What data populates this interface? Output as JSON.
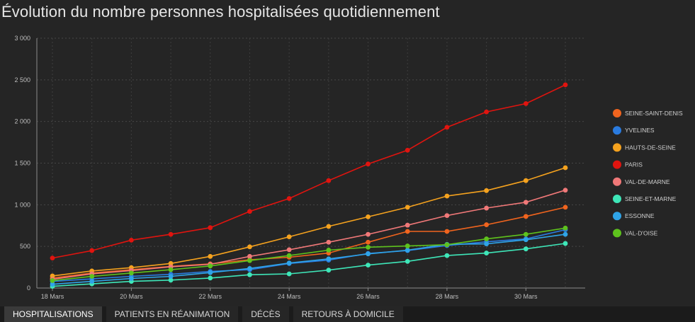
{
  "title": "Évolution du nombre personnes hospitalisées quotidiennement",
  "tabs": [
    {
      "label": "HOSPITALISATIONS",
      "active": true
    },
    {
      "label": "PATIENTS EN RÉANIMATION",
      "active": false
    },
    {
      "label": "DÉCÈS",
      "active": false
    },
    {
      "label": "RETOURS À DOMICILE",
      "active": false
    }
  ],
  "chart_data": {
    "type": "line",
    "title": "Évolution du nombre personnes hospitalisées quotidiennement",
    "xlabel": "",
    "ylabel": "",
    "x": [
      "18 Mars",
      "19 Mars",
      "20 Mars",
      "21 Mars",
      "22 Mars",
      "23 Mars",
      "24 Mars",
      "25 Mars",
      "26 Mars",
      "27 Mars",
      "28 Mars",
      "29 Mars",
      "30 Mars",
      "31 Mars"
    ],
    "x_tick_labels": [
      "18 Mars",
      "20 Mars",
      "22 Mars",
      "24 Mars",
      "26 Mars",
      "28 Mars",
      "30 Mars"
    ],
    "y_tick_labels": [
      "0",
      "500",
      "1 000",
      "1 500",
      "2 000",
      "2 500",
      "3 000"
    ],
    "ylim": [
      0,
      3000
    ],
    "grid": "dashed",
    "legend_position": "right",
    "series": [
      {
        "name": "SEINE-SAINT-DENIS",
        "color": "#f0641e",
        "values": [
          120,
          180,
          220,
          260,
          290,
          340,
          370,
          420,
          550,
          680,
          680,
          760,
          860,
          970
        ]
      },
      {
        "name": "YVELINES",
        "color": "#2a7bdf",
        "values": [
          80,
          110,
          140,
          165,
          200,
          220,
          295,
          335,
          415,
          450,
          510,
          555,
          590,
          700
        ]
      },
      {
        "name": "HAUTS-DE-SEINE",
        "color": "#f5a21e",
        "values": [
          145,
          205,
          245,
          295,
          380,
          495,
          615,
          740,
          855,
          970,
          1105,
          1170,
          1290,
          1445
        ]
      },
      {
        "name": "PARIS",
        "color": "#e0140f",
        "values": [
          360,
          450,
          575,
          645,
          725,
          920,
          1075,
          1290,
          1490,
          1655,
          1930,
          2115,
          2215,
          2440
        ]
      },
      {
        "name": "VAL-DE-MARNE",
        "color": "#f07878",
        "values": [
          105,
          170,
          210,
          255,
          285,
          380,
          460,
          550,
          645,
          755,
          870,
          960,
          1030,
          1175
        ]
      },
      {
        "name": "SEINE-ET-MARNE",
        "color": "#3ee6b8",
        "values": [
          20,
          50,
          80,
          95,
          120,
          160,
          170,
          215,
          275,
          320,
          390,
          420,
          470,
          535
        ]
      },
      {
        "name": "ESSONNE",
        "color": "#2fa4e8",
        "values": [
          45,
          80,
          115,
          140,
          185,
          235,
          300,
          350,
          410,
          455,
          525,
          530,
          580,
          645
        ]
      },
      {
        "name": "VAL-D'OISE",
        "color": "#5ec21d",
        "values": [
          90,
          140,
          180,
          220,
          265,
          330,
          390,
          455,
          490,
          505,
          520,
          590,
          645,
          720
        ]
      }
    ]
  }
}
